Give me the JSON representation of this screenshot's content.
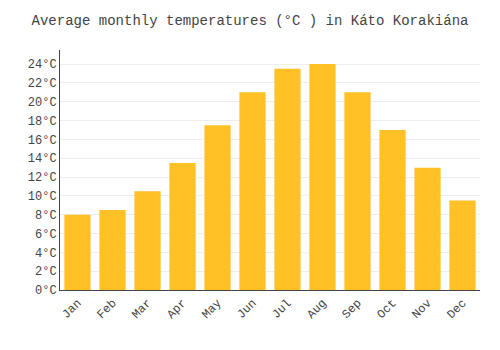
{
  "chart_data": {
    "type": "bar",
    "title": "Average monthly temperatures (°C ) in Káto Korakiána",
    "categories": [
      "Jan",
      "Feb",
      "Mar",
      "Apr",
      "May",
      "Jun",
      "Jul",
      "Aug",
      "Sep",
      "Oct",
      "Nov",
      "Dec"
    ],
    "values": [
      8.0,
      8.5,
      10.5,
      13.5,
      17.5,
      21.0,
      23.5,
      24.0,
      21.0,
      17.0,
      13.0,
      9.5
    ],
    "color": "#FFC125",
    "ylim": [
      0,
      25.5
    ],
    "yticks": [
      {
        "value": 0,
        "label": "0°C"
      },
      {
        "value": 2,
        "label": "2°C"
      },
      {
        "value": 4,
        "label": "4°C"
      },
      {
        "value": 6,
        "label": "6°C"
      },
      {
        "value": 8,
        "label": "8°C"
      },
      {
        "value": 10,
        "label": "10°C"
      },
      {
        "value": 12,
        "label": "12°C"
      },
      {
        "value": 14,
        "label": "14°C"
      },
      {
        "value": 16,
        "label": "16°C"
      },
      {
        "value": 18,
        "label": "18°C"
      },
      {
        "value": 20,
        "label": "20°C"
      },
      {
        "value": 22,
        "label": "22°C"
      },
      {
        "value": 24,
        "label": "24°C"
      }
    ],
    "grid": true
  }
}
